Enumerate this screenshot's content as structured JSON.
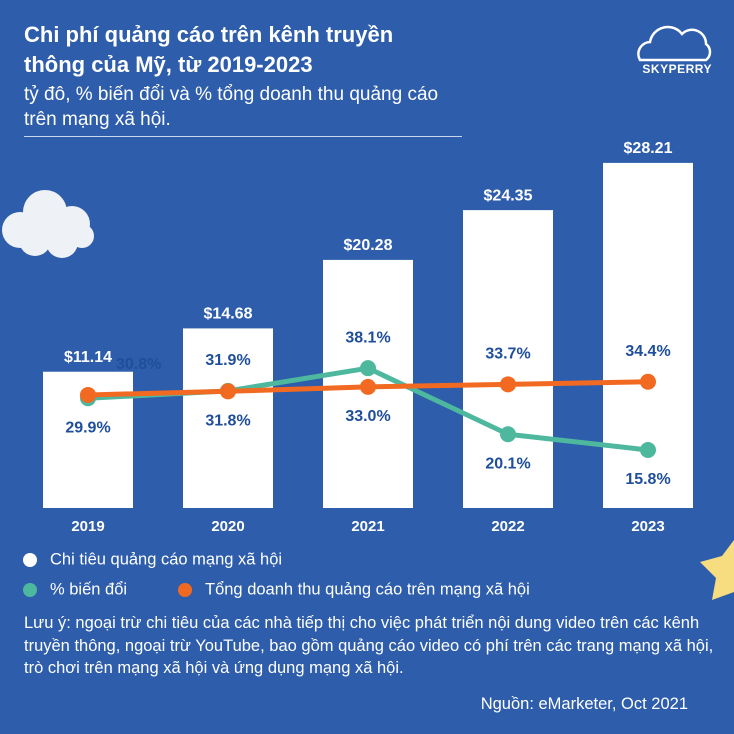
{
  "brand": "SKYPERRY",
  "chart_data": {
    "type": "bar_line",
    "title": "Chi phí quảng cáo trên kênh truyền thông của Mỹ, từ 2019-2023",
    "subtitle": "tỷ đô, % biến đổi và % tổng doanh thu quảng cáo trên mạng xã hội.",
    "categories": [
      "2019",
      "2020",
      "2021",
      "2022",
      "2023"
    ],
    "ylim": [
      0,
      30
    ],
    "y2lim": [
      0,
      100
    ],
    "series": [
      {
        "name": "Chi tiêu quảng cáo mạng xã hội",
        "type": "bar",
        "color": "#ffffff",
        "values": [
          11.14,
          14.68,
          20.28,
          24.35,
          28.21
        ],
        "value_labels": [
          "$11.14",
          "$14.68",
          "$20.28",
          "$24.35",
          "$28.21"
        ]
      },
      {
        "name": "% biến đổi",
        "type": "line",
        "axis": "y2",
        "color": "#4db89e",
        "values": [
          29.9,
          31.9,
          38.1,
          20.1,
          15.8
        ],
        "value_labels": [
          "29.9%",
          "31.9%",
          "38.1%",
          "20.1%",
          "15.8%"
        ]
      },
      {
        "name": "Tổng doanh thu quảng cáo trên mạng xã hội",
        "type": "line",
        "axis": "y2",
        "color": "#f26a21",
        "values": [
          30.8,
          31.8,
          33.0,
          33.7,
          34.4
        ],
        "value_labels": [
          "30.8%",
          "31.8%",
          "33.0%",
          "33.7%",
          "34.4%"
        ]
      }
    ],
    "note": "Lưu ý: ngoại trừ chi tiêu của các nhà tiếp thị cho việc phát triển nội dung video trên các kênh truyền thông, ngoại trừ YouTube, bao gồm quảng cáo video có phí trên các trang mạng xã hội, trò chơi trên mạng xã hội và ứng dụng mạng xã hội.",
    "source": "Nguồn: eMarketer, Oct 2021"
  }
}
